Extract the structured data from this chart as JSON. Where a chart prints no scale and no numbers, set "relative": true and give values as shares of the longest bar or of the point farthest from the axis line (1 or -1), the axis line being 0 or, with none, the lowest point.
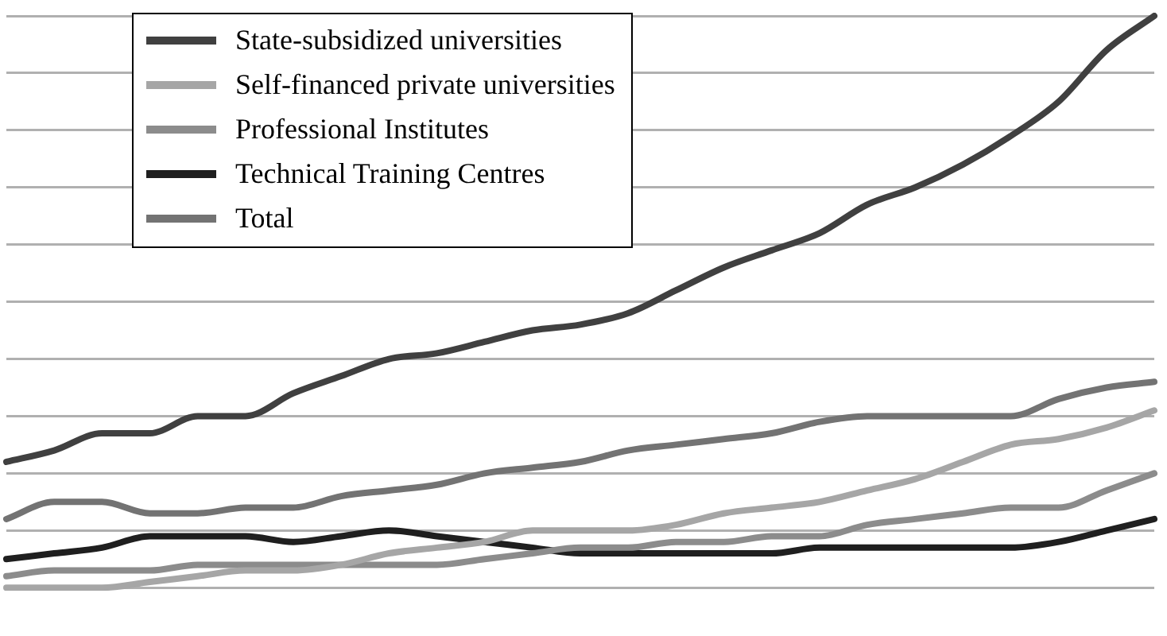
{
  "chart_data": {
    "type": "line",
    "relative": true,
    "grid": "y",
    "legend": "top left",
    "marker": "none",
    "line_style": "solid",
    "categories": [
      null,
      null,
      null,
      null,
      null,
      null,
      null,
      null,
      null,
      null,
      null,
      null,
      null,
      null,
      null,
      null,
      null,
      null,
      null,
      null,
      null,
      null,
      null,
      null,
      null
    ],
    "series": [
      {
        "name": "State-subsidized universities",
        "color": "#404040",
        "values": [
          0.22,
          0.24,
          0.27,
          0.27,
          0.3,
          0.3,
          0.34,
          0.37,
          0.4,
          0.41,
          0.43,
          0.45,
          0.46,
          0.48,
          0.52,
          0.56,
          0.59,
          0.62,
          0.67,
          0.7,
          0.74,
          0.79,
          0.85,
          0.94,
          1
        ]
      },
      {
        "name": "Self-financed private universities",
        "color": "#a6a6a6",
        "values": [
          0,
          0,
          0,
          0.01,
          0.02,
          0.03,
          0.03,
          0.04,
          0.06,
          0.07,
          0.08,
          0.1,
          0.1,
          0.1,
          0.11,
          0.13,
          0.14,
          0.15,
          0.17,
          0.19,
          0.22,
          0.25,
          0.26,
          0.28,
          0.31
        ]
      },
      {
        "name": "Professional Institutes",
        "color": "#8c8c8c",
        "values": [
          0.02,
          0.03,
          0.03,
          0.03,
          0.04,
          0.04,
          0.04,
          0.04,
          0.04,
          0.04,
          0.05,
          0.06,
          0.07,
          0.07,
          0.08,
          0.08,
          0.09,
          0.09,
          0.11,
          0.12,
          0.13,
          0.14,
          0.14,
          0.17,
          0.2
        ]
      },
      {
        "name": "Technical Training Centres",
        "color": "#1f1f1f",
        "values": [
          0.05,
          0.06,
          0.07,
          0.09,
          0.09,
          0.09,
          0.08,
          0.09,
          0.1,
          0.09,
          0.08,
          0.07,
          0.06,
          0.06,
          0.06,
          0.06,
          0.06,
          0.07,
          0.07,
          0.07,
          0.07,
          0.07,
          0.08,
          0.1,
          0.12
        ]
      },
      {
        "name": "Total",
        "color": "#737373",
        "values": [
          0.12,
          0.15,
          0.15,
          0.13,
          0.13,
          0.14,
          0.14,
          0.16,
          0.17,
          0.18,
          0.2,
          0.21,
          0.22,
          0.24,
          0.25,
          0.26,
          0.27,
          0.29,
          0.3,
          0.3,
          0.3,
          0.3,
          0.33,
          0.35,
          0.36
        ]
      }
    ]
  }
}
